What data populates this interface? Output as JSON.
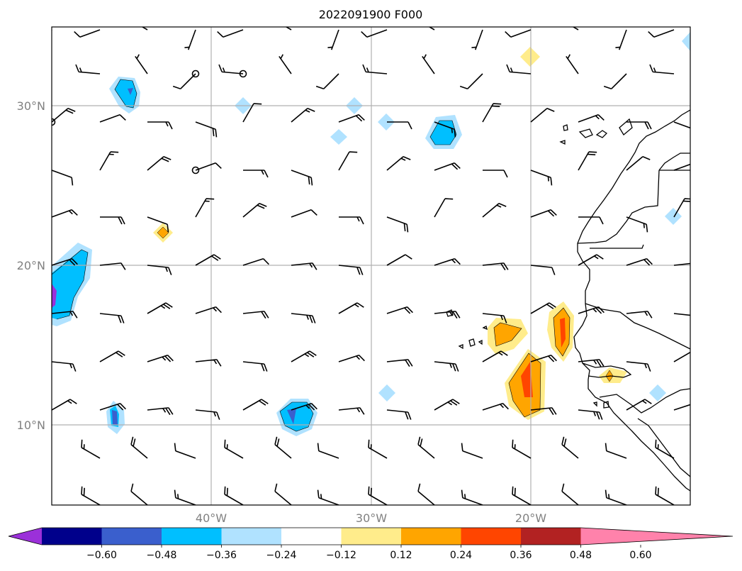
{
  "title": "2022091900 F000",
  "map": {
    "lon_range": [
      -50,
      -10
    ],
    "lat_range": [
      5,
      35
    ],
    "lat_ticks": [
      {
        "value": 30,
        "label": "30°N"
      },
      {
        "value": 20,
        "label": "20°N"
      },
      {
        "value": 10,
        "label": "10°N"
      }
    ],
    "lon_ticks": [
      {
        "value": -40,
        "label": "40°W"
      },
      {
        "value": -30,
        "label": "30°W"
      },
      {
        "value": -20,
        "label": "20°W"
      }
    ],
    "gridlines": true
  },
  "colorbar": {
    "ticks": [
      "−0.60",
      "−0.48",
      "−0.36",
      "−0.24",
      "−0.12",
      "0.12",
      "0.24",
      "0.36",
      "0.48",
      "0.60"
    ],
    "colors": [
      "#9b30d9",
      "#00008b",
      "#3a5fcd",
      "#00bfff",
      "#b0e2ff",
      "#ffffff",
      "#ffec8b",
      "#ffa500",
      "#ff4500",
      "#b22222",
      "#ff82ab"
    ]
  },
  "colors": {
    "neg_light": "#b0e2ff",
    "neg_mid": "#00bfff",
    "neg_dark": "#3a5fcd",
    "neg_deeper": "#9b30d9",
    "pos_light": "#ffec8b",
    "pos_mid": "#ffa500",
    "pos_dark": "#ff4500"
  }
}
